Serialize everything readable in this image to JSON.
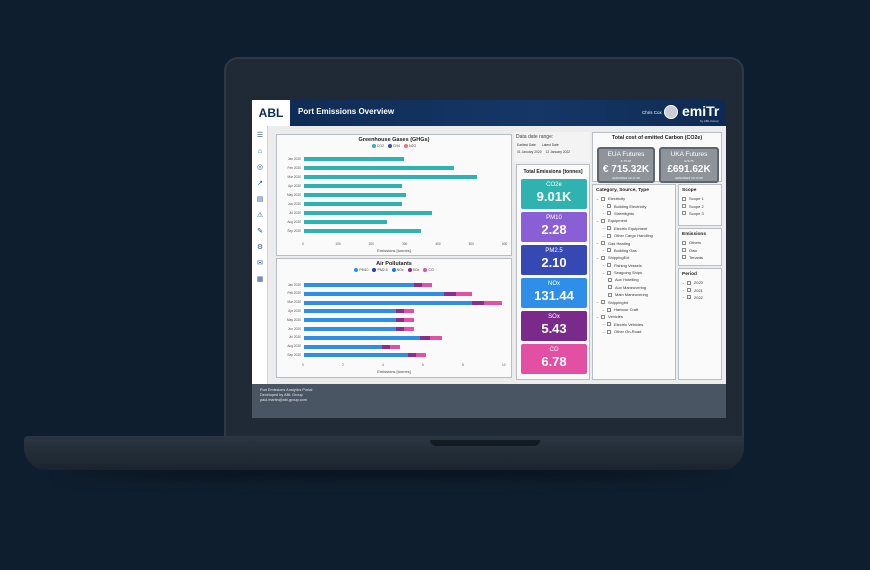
{
  "header": {
    "logo": "ABL",
    "title": "Port Emissions Overview",
    "user": "Chris Cox",
    "brand": "emiTr",
    "brand_sub": "by ABL Group"
  },
  "sidebar": {
    "icons": [
      "hamburger-icon",
      "home-icon",
      "globe-icon",
      "chart-icon",
      "document-icon",
      "alert-icon",
      "pen-icon",
      "gear-icon",
      "mail-icon",
      "grid-icon"
    ]
  },
  "chart_data": [
    {
      "type": "bar",
      "title": "Greenhouse Gases (GHGs)",
      "legend": [
        "CO2",
        "CH4",
        "N2O"
      ],
      "colors": [
        "#2fb3b0",
        "#3b4fa8",
        "#e8747c"
      ],
      "categories": [
        "Jan 2020",
        "Feb 2020",
        "Mar 2020",
        "Apr 2020",
        "May 2020",
        "Jun 2020",
        "Jul 2020",
        "Aug 2020",
        "Sep 2020"
      ],
      "values": [
        300,
        450,
        520,
        295,
        305,
        295,
        385,
        250,
        350
      ],
      "xticks": [
        0,
        100,
        200,
        300,
        400,
        500,
        600
      ],
      "xlabel": "Emissions [tonnes]",
      "xlim": [
        0,
        600
      ]
    },
    {
      "type": "bar",
      "stacked": true,
      "title": "Air Pollutants",
      "legend": [
        "PM10",
        "PM2.5",
        "NOx",
        "SOx",
        "CO"
      ],
      "colors": [
        "#2f8fe8",
        "#2b3fa0",
        "#1e7be0",
        "#8b2d8b",
        "#e34fa3"
      ],
      "categories": [
        "Jan 2020",
        "Feb 2020",
        "Mar 2020",
        "Apr 2020",
        "May 2020",
        "Jun 2020",
        "Jul 2020",
        "Aug 2020",
        "Sep 2020"
      ],
      "series": [
        {
          "name": "NOx",
          "values": [
            5.5,
            7.0,
            8.4,
            4.6,
            4.6,
            4.6,
            5.8,
            3.9,
            5.2
          ]
        },
        {
          "name": "SOx",
          "values": [
            0.4,
            0.6,
            0.6,
            0.4,
            0.4,
            0.4,
            0.5,
            0.4,
            0.4
          ]
        },
        {
          "name": "CO",
          "values": [
            0.5,
            0.8,
            0.9,
            0.5,
            0.5,
            0.5,
            0.6,
            0.5,
            0.5
          ]
        }
      ],
      "xticks": [
        0,
        2,
        4,
        6,
        8,
        10
      ],
      "xlabel": "Emissions [tonnes]",
      "xlim": [
        0,
        10
      ]
    }
  ],
  "date_range": {
    "label": "Data date range:",
    "earliest_label": "Earliest Date",
    "latest_label": "Latest Date",
    "earliest": "01 January 2020",
    "latest": "12 January 2022"
  },
  "total_emissions": {
    "title": "Total Emissions [tonnes]",
    "cards": [
      {
        "name": "CO2e",
        "value": "9.01K",
        "color": "#2fb3b0"
      },
      {
        "name": "PM10",
        "value": "2.28",
        "color": "#8a5fd6"
      },
      {
        "name": "PM2.5",
        "value": "2.10",
        "color": "#3648b4"
      },
      {
        "name": "NOx",
        "value": "131.44",
        "color": "#2f8fe8"
      },
      {
        "name": "SOx",
        "value": "5.43",
        "color": "#7a2a8a"
      },
      {
        "name": "CO",
        "value": "6.78",
        "color": "#e34fa3"
      }
    ]
  },
  "carbon_cost": {
    "title": "Total cost of emitted Carbon (CO2e)",
    "eua": {
      "title": "EUA Futures",
      "sub": "€ 79.38",
      "value": "€ 715.32K",
      "date": "02/02/2022 10:17:28"
    },
    "uka": {
      "title": "UKA Futures",
      "sub": "£76.75",
      "value": "£691.62K",
      "date": "02/02/2022 10:17:28"
    }
  },
  "category_filter": {
    "title": "Category, Source, Type",
    "items": [
      {
        "label": "Electricity",
        "level": 0
      },
      {
        "label": "Building Electricity",
        "level": 1
      },
      {
        "label": "Streetlights",
        "level": 1
      },
      {
        "label": "Equipment",
        "level": 0
      },
      {
        "label": "Electric Equipment",
        "level": 1
      },
      {
        "label": "Other Cargo Handling",
        "level": 1
      },
      {
        "label": "Gas Heating",
        "level": 0
      },
      {
        "label": "Building Gas",
        "level": 1
      },
      {
        "label": "ShippingExt",
        "level": 0
      },
      {
        "label": "Fishing Vessels",
        "level": 1
      },
      {
        "label": "Seagoing Ships",
        "level": 1
      },
      {
        "label": "Aux Hotelling",
        "level": 2
      },
      {
        "label": "Aux Maneuvering",
        "level": 2
      },
      {
        "label": "Main Maneuvering",
        "level": 2
      },
      {
        "label": "ShippingInt",
        "level": 0
      },
      {
        "label": "Harbour Craft",
        "level": 1
      },
      {
        "label": "Vehicles",
        "level": 0
      },
      {
        "label": "Electric Vehicles",
        "level": 1
      },
      {
        "label": "Other On-Road",
        "level": 1
      }
    ]
  },
  "scope_filter": {
    "title": "Scope",
    "items": [
      "Scope 1",
      "Scope 2",
      "Scope 3"
    ]
  },
  "emissions_filter": {
    "title": "Emissions",
    "items": [
      "Others",
      "Own",
      "Tenants"
    ]
  },
  "period_filter": {
    "title": "Period",
    "items": [
      "2020",
      "2021",
      "2022"
    ]
  },
  "footer": {
    "line1": "Port Emissions Analytics Portal",
    "line2": "Developed by ABL Group",
    "line3": "paul.martin@abl-group.com"
  }
}
